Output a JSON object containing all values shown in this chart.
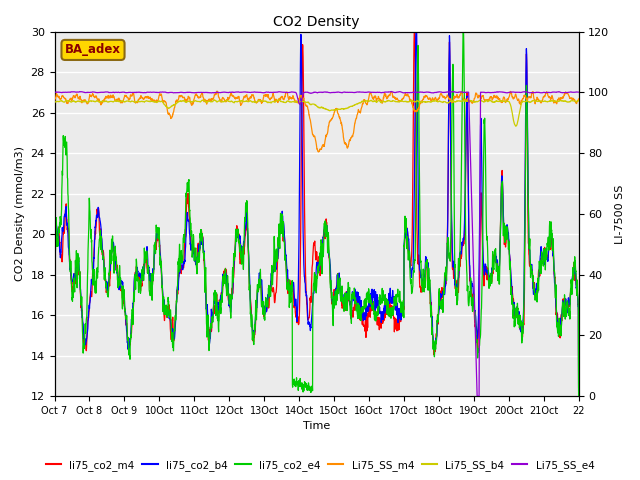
{
  "title": "CO2 Density",
  "xlabel": "Time",
  "ylabel_left": "CO2 Density (mmol/m3)",
  "ylabel_right": "LI-7500 SS",
  "ylim_left": [
    12,
    30
  ],
  "ylim_right": [
    0,
    120
  ],
  "xtick_labels": [
    "Oct 7",
    "Oct 8",
    "Oct 9",
    "Oct 10Oct",
    "11Oct",
    "12Oct",
    "13Oct",
    "14Oct",
    "15Oct",
    "16Oct",
    "17Oct",
    "18Oct",
    "19Oct",
    "20Oct",
    "21Oct",
    "22"
  ],
  "annotation_text": "BA_adex",
  "annotation_color": "#8B0000",
  "annotation_bg": "#FFD700",
  "colors": {
    "co2_m4": "#FF0000",
    "co2_b4": "#0000FF",
    "co2_e4": "#00CC00",
    "ss_m4": "#FF8C00",
    "ss_b4": "#CCCC00",
    "ss_e4": "#9400D3"
  },
  "labels": [
    "li75_co2_m4",
    "li75_co2_b4",
    "li75_co2_e4",
    "Li75_SS_m4",
    "Li75_SS_b4",
    "Li75_SS_e4"
  ]
}
